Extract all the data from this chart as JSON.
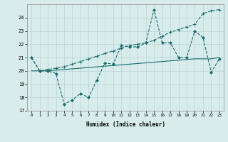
{
  "xlabel": "Humidex (Indice chaleur)",
  "background_color": "#d8ecec",
  "grid_color": "#b8d4d4",
  "line_color": "#1a6b6b",
  "xlim": [
    -0.5,
    23.5
  ],
  "ylim": [
    17,
    25.0
  ],
  "yticks": [
    17,
    18,
    19,
    20,
    21,
    22,
    23,
    24
  ],
  "xticks": [
    0,
    1,
    2,
    3,
    4,
    5,
    6,
    7,
    8,
    9,
    10,
    11,
    12,
    13,
    14,
    15,
    16,
    17,
    18,
    19,
    20,
    21,
    22,
    23
  ],
  "line1_x": [
    0,
    1,
    2,
    3,
    4,
    5,
    6,
    7,
    8,
    9,
    10,
    11,
    12,
    13,
    14,
    15,
    16,
    17,
    18,
    19,
    20,
    21,
    22,
    23
  ],
  "line1_y": [
    21.0,
    20.0,
    20.0,
    19.8,
    17.5,
    17.8,
    18.3,
    18.0,
    19.3,
    20.6,
    20.5,
    21.9,
    21.8,
    21.8,
    22.1,
    24.6,
    22.1,
    22.1,
    21.0,
    21.0,
    23.0,
    22.5,
    19.9,
    20.9
  ],
  "line2_x": [
    0,
    1,
    2,
    3,
    4,
    5,
    6,
    7,
    8,
    9,
    10,
    11,
    12,
    13,
    14,
    15,
    16,
    17,
    18,
    19,
    20,
    21,
    22,
    23
  ],
  "line2_y": [
    20.0,
    20.0,
    20.0,
    20.05,
    20.1,
    20.15,
    20.2,
    20.25,
    20.3,
    20.35,
    20.4,
    20.45,
    20.5,
    20.55,
    20.6,
    20.65,
    20.7,
    20.75,
    20.8,
    20.85,
    20.9,
    20.9,
    20.9,
    21.0
  ],
  "line3_x": [
    0,
    1,
    2,
    3,
    4,
    5,
    6,
    7,
    8,
    9,
    10,
    11,
    12,
    13,
    14,
    15,
    16,
    17,
    18,
    19,
    20,
    21,
    22,
    23
  ],
  "line3_y": [
    21.0,
    20.0,
    20.1,
    20.2,
    20.3,
    20.5,
    20.7,
    20.9,
    21.1,
    21.3,
    21.5,
    21.7,
    21.9,
    22.0,
    22.1,
    22.3,
    22.6,
    22.9,
    23.1,
    23.3,
    23.5,
    24.3,
    24.5,
    24.6
  ]
}
